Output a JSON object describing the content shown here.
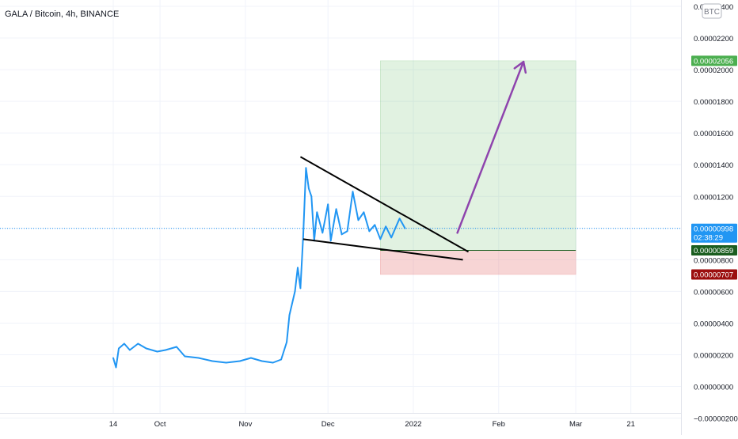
{
  "chart_data": {
    "type": "line",
    "title": "GALA / Bitcoin, 4h, BINANCE",
    "currency_badge": "BTC",
    "x_ticks": [
      "14",
      "Oct",
      "Nov",
      "Dec",
      "2022",
      "Feb",
      "Mar",
      "21"
    ],
    "y_ticks": [
      "0.00002400",
      "0.00002200",
      "0.00002000",
      "0.00001800",
      "0.00001600",
      "0.00001400",
      "0.00001200",
      "0.00001000",
      "0.00000800",
      "0.00000600",
      "0.00000400",
      "0.00000200",
      "0.00000000",
      "−0.00000200"
    ],
    "ylim": [
      -2.32e-06,
      2.425e-05
    ],
    "grid": true,
    "series": [
      {
        "color": "#2196f3",
        "points": [
          [
            "2021-09-14",
            1.8e-06
          ],
          [
            "2021-09-15",
            1.2e-06
          ],
          [
            "2021-09-16",
            2.4e-06
          ],
          [
            "2021-09-18",
            2.7e-06
          ],
          [
            "2021-09-20",
            2.3e-06
          ],
          [
            "2021-09-23",
            2.7e-06
          ],
          [
            "2021-09-26",
            2.4e-06
          ],
          [
            "2021-09-30",
            2.2e-06
          ],
          [
            "2021-10-03",
            2.3e-06
          ],
          [
            "2021-10-07",
            2.5e-06
          ],
          [
            "2021-10-10",
            1.9e-06
          ],
          [
            "2021-10-15",
            1.8e-06
          ],
          [
            "2021-10-20",
            1.6e-06
          ],
          [
            "2021-10-25",
            1.5e-06
          ],
          [
            "2021-10-30",
            1.6e-06
          ],
          [
            "2021-11-03",
            1.8e-06
          ],
          [
            "2021-11-07",
            1.6e-06
          ],
          [
            "2021-11-11",
            1.5e-06
          ],
          [
            "2021-11-14",
            1.7e-06
          ],
          [
            "2021-11-16",
            2.8e-06
          ],
          [
            "2021-11-17",
            4.5e-06
          ],
          [
            "2021-11-19",
            6e-06
          ],
          [
            "2021-11-20",
            7.5e-06
          ],
          [
            "2021-11-21",
            6.2e-06
          ],
          [
            "2021-11-22",
            9.5e-06
          ],
          [
            "2021-11-23",
            1.38e-05
          ],
          [
            "2021-11-24",
            1.25e-05
          ],
          [
            "2021-11-25",
            1.2e-05
          ],
          [
            "2021-11-26",
            9.2e-06
          ],
          [
            "2021-11-27",
            1.1e-05
          ],
          [
            "2021-11-29",
            9.7e-06
          ],
          [
            "2021-12-01",
            1.15e-05
          ],
          [
            "2021-12-02",
            9.2e-06
          ],
          [
            "2021-12-04",
            1.12e-05
          ],
          [
            "2021-12-06",
            9.6e-06
          ],
          [
            "2021-12-08",
            9.8e-06
          ],
          [
            "2021-12-10",
            1.23e-05
          ],
          [
            "2021-12-12",
            1.05e-05
          ],
          [
            "2021-12-14",
            1.1e-05
          ],
          [
            "2021-12-16",
            9.8e-06
          ],
          [
            "2021-12-18",
            1.02e-05
          ],
          [
            "2021-12-20",
            9.3e-06
          ],
          [
            "2021-12-22",
            1.01e-05
          ],
          [
            "2021-12-24",
            9.4e-06
          ],
          [
            "2021-12-26",
            1.02e-05
          ],
          [
            "2021-12-27",
            1.06e-05
          ],
          [
            "2021-12-29",
            9.98e-06
          ]
        ]
      }
    ],
    "annotations": {
      "current_price": {
        "label": "0.00000998",
        "countdown": "02:38:29",
        "value": 9.98e-06,
        "color": "#2196f3"
      },
      "target": {
        "label": "0.00002056",
        "value": 2.056e-05,
        "color": "#4caf50"
      },
      "entry": {
        "label": "0.00000859",
        "value": 8.59e-06,
        "color": "#1b5e20"
      },
      "stop": {
        "label": "0.00000707",
        "value": 7.07e-06,
        "color": "#9c0e0e"
      },
      "position_box": {
        "x_start": "2021-12-20",
        "x_end": "2022-03-01"
      },
      "trendline_upper": [
        [
          "2021-11-21",
          1.45e-05
        ],
        [
          "2022-01-21",
          8.5e-06
        ]
      ],
      "trendline_lower": [
        [
          "2021-11-22",
          9.3e-06
        ],
        [
          "2022-01-19",
          8e-06
        ]
      ],
      "arrow": [
        [
          "2022-01-17",
          9.7e-06
        ],
        [
          "2022-02-10",
          2.05e-05
        ]
      ],
      "arrow_color": "#8e44ad"
    }
  }
}
